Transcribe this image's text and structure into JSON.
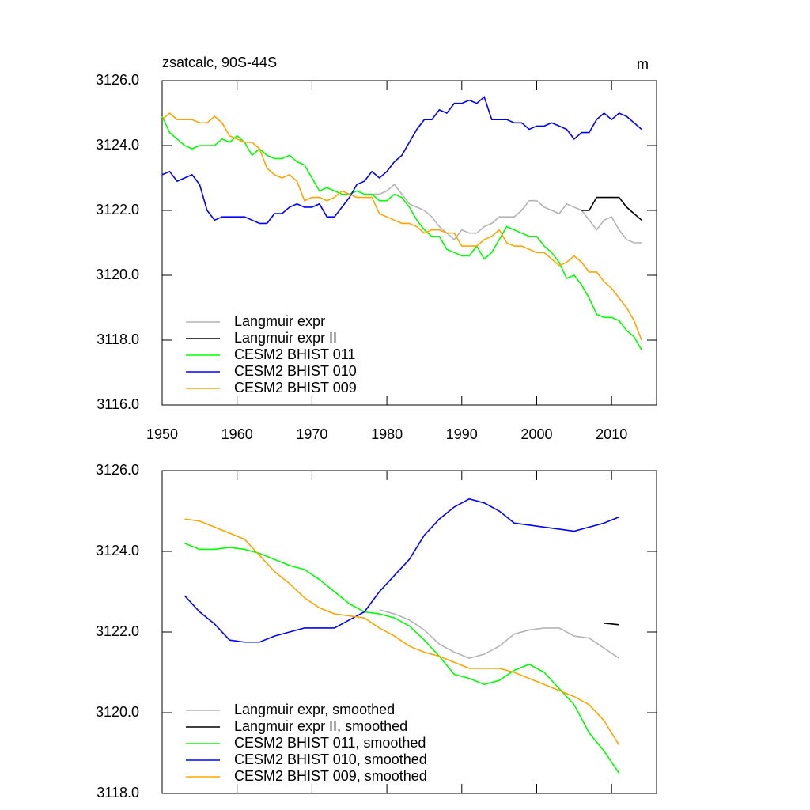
{
  "chart_data": [
    {
      "type": "line",
      "title": "zsatcalc, 90S-44S",
      "units": "m",
      "x": [
        1950,
        1951,
        1952,
        1953,
        1954,
        1955,
        1956,
        1957,
        1958,
        1959,
        1960,
        1961,
        1962,
        1963,
        1964,
        1965,
        1966,
        1967,
        1968,
        1969,
        1970,
        1971,
        1972,
        1973,
        1974,
        1975,
        1976,
        1977,
        1978,
        1979,
        1980,
        1981,
        1982,
        1983,
        1984,
        1985,
        1986,
        1987,
        1988,
        1989,
        1990,
        1991,
        1992,
        1993,
        1994,
        1995,
        1996,
        1997,
        1998,
        1999,
        2000,
        2001,
        2002,
        2003,
        2004,
        2005,
        2006,
        2007,
        2008,
        2009,
        2010,
        2011,
        2012,
        2013,
        2014
      ],
      "xlim": [
        1950,
        2016
      ],
      "xticks": [
        1950,
        1960,
        1970,
        1980,
        1990,
        2000,
        2010
      ],
      "ylim": [
        3116,
        3126
      ],
      "yticks": [
        {
          "value": 3116,
          "label": "3116.0"
        },
        {
          "value": 3118,
          "label": "3118.0"
        },
        {
          "value": 3120,
          "label": "3120.0"
        },
        {
          "value": 3122,
          "label": "3122.0"
        },
        {
          "value": 3124,
          "label": "3124.0"
        },
        {
          "value": 3126,
          "label": "3126.0"
        }
      ],
      "legend": "lower left",
      "series": [
        {
          "name": "Langmuir expr",
          "color": "#b4b4b4",
          "values": [
            null,
            null,
            null,
            null,
            null,
            null,
            null,
            null,
            null,
            null,
            null,
            null,
            null,
            null,
            null,
            null,
            null,
            null,
            null,
            null,
            null,
            null,
            null,
            null,
            null,
            null,
            null,
            null,
            3122.5,
            3122.5,
            3122.6,
            3122.8,
            3122.5,
            3122.2,
            3122.1,
            3122.0,
            3121.8,
            3121.5,
            3121.3,
            3121.1,
            3121.4,
            3121.3,
            3121.3,
            3121.5,
            3121.6,
            3121.8,
            3121.8,
            3121.8,
            3122.0,
            3122.3,
            3122.3,
            3122.1,
            3122.0,
            3121.9,
            3122.2,
            3122.1,
            3122.0,
            3121.7,
            3121.4,
            3121.7,
            3121.8,
            3121.4,
            3121.1,
            3121.0,
            3121.0
          ]
        },
        {
          "name": "Langmuir expr II",
          "color": "#000000",
          "values": [
            null,
            null,
            null,
            null,
            null,
            null,
            null,
            null,
            null,
            null,
            null,
            null,
            null,
            null,
            null,
            null,
            null,
            null,
            null,
            null,
            null,
            null,
            null,
            null,
            null,
            null,
            null,
            null,
            null,
            null,
            null,
            null,
            null,
            null,
            null,
            null,
            null,
            null,
            null,
            null,
            null,
            null,
            null,
            null,
            null,
            null,
            null,
            null,
            null,
            null,
            null,
            null,
            null,
            null,
            null,
            null,
            3122.0,
            3122.0,
            3122.4,
            3122.4,
            3122.4,
            3122.4,
            3122.1,
            3121.9,
            3121.7
          ]
        },
        {
          "name": "CESM2 BHIST 011",
          "color": "#00ff00",
          "values": [
            3124.9,
            3124.4,
            3124.2,
            3124.0,
            3123.9,
            3124.0,
            3124.0,
            3124.0,
            3124.2,
            3124.1,
            3124.3,
            3124.1,
            3123.7,
            3123.9,
            3123.7,
            3123.6,
            3123.6,
            3123.7,
            3123.5,
            3123.4,
            3123.0,
            3122.6,
            3122.7,
            3122.6,
            3122.5,
            3122.5,
            3122.6,
            3122.5,
            3122.5,
            3122.3,
            3122.3,
            3122.5,
            3122.4,
            3122.1,
            3121.7,
            3121.4,
            3121.2,
            3121.2,
            3120.8,
            3120.7,
            3120.6,
            3120.6,
            3120.9,
            3120.5,
            3120.7,
            3121.1,
            3121.5,
            3121.4,
            3121.3,
            3121.2,
            3121.2,
            3120.9,
            3120.7,
            3120.4,
            3119.9,
            3120.0,
            3119.7,
            3119.3,
            3118.8,
            3118.7,
            3118.7,
            3118.6,
            3118.3,
            3118.1,
            3117.7
          ]
        },
        {
          "name": "CESM2 BHIST 010",
          "color": "#0000ff",
          "values": [
            3123.1,
            3123.2,
            3122.9,
            3123.0,
            3123.1,
            3122.8,
            3122.0,
            3121.7,
            3121.8,
            3121.8,
            3121.8,
            3121.8,
            3121.7,
            3121.6,
            3121.6,
            3121.9,
            3121.9,
            3122.1,
            3122.2,
            3122.1,
            3122.1,
            3122.2,
            3121.8,
            3121.8,
            3122.1,
            3122.4,
            3122.8,
            3122.9,
            3123.2,
            3123.0,
            3123.2,
            3123.5,
            3123.7,
            3124.1,
            3124.5,
            3124.8,
            3124.8,
            3125.1,
            3125.0,
            3125.3,
            3125.3,
            3125.4,
            3125.3,
            3125.5,
            3124.8,
            3124.8,
            3124.8,
            3124.7,
            3124.7,
            3124.5,
            3124.6,
            3124.6,
            3124.7,
            3124.6,
            3124.5,
            3124.2,
            3124.4,
            3124.4,
            3124.8,
            3125.0,
            3124.8,
            3125.0,
            3124.9,
            3124.7,
            3124.5
          ]
        },
        {
          "name": "CESM2 BHIST 009",
          "color": "#ffa500",
          "values": [
            3124.8,
            3125.0,
            3124.8,
            3124.8,
            3124.8,
            3124.7,
            3124.7,
            3124.9,
            3124.7,
            3124.3,
            3124.2,
            3124.1,
            3124.1,
            3123.9,
            3123.3,
            3123.1,
            3123.0,
            3123.1,
            3122.9,
            3122.3,
            3122.4,
            3122.4,
            3122.3,
            3122.4,
            3122.6,
            3122.5,
            3122.4,
            3122.4,
            3122.4,
            3121.9,
            3121.8,
            3121.7,
            3121.6,
            3121.6,
            3121.5,
            3121.3,
            3121.4,
            3121.4,
            3121.3,
            3121.3,
            3120.9,
            3120.9,
            3120.9,
            3121.1,
            3121.2,
            3121.4,
            3121.0,
            3120.9,
            3120.9,
            3120.8,
            3120.7,
            3120.7,
            3120.5,
            3120.3,
            3120.4,
            3120.6,
            3120.4,
            3120.1,
            3120.1,
            3119.8,
            3119.6,
            3119.3,
            3119.0,
            3118.6,
            3118.0
          ]
        }
      ]
    },
    {
      "type": "line",
      "x": [
        1953,
        1955,
        1957,
        1959,
        1961,
        1963,
        1965,
        1967,
        1969,
        1971,
        1973,
        1975,
        1977,
        1979,
        1981,
        1983,
        1985,
        1987,
        1989,
        1991,
        1993,
        1995,
        1997,
        1999,
        2001,
        2003,
        2005,
        2007,
        2009,
        2011
      ],
      "xlim": [
        1950,
        2016
      ],
      "xticks": [
        1950,
        1960,
        1970,
        1980,
        1990,
        2000,
        2010
      ],
      "ylim": [
        3118,
        3126
      ],
      "yticks": [
        {
          "value": 3118,
          "label": "3118.0"
        },
        {
          "value": 3120,
          "label": "3120.0"
        },
        {
          "value": 3122,
          "label": "3122.0"
        },
        {
          "value": 3124,
          "label": "3124.0"
        },
        {
          "value": 3126,
          "label": "3126.0"
        }
      ],
      "legend": "lower left",
      "series": [
        {
          "name": "Langmuir expr, smoothed",
          "color": "#b4b4b4",
          "values": [
            null,
            null,
            null,
            null,
            null,
            null,
            null,
            null,
            null,
            null,
            null,
            null,
            null,
            3122.55,
            3122.45,
            3122.3,
            3122.05,
            3121.7,
            3121.5,
            3121.35,
            3121.45,
            3121.65,
            3121.95,
            3122.05,
            3122.1,
            3122.1,
            3121.9,
            3121.85,
            3121.6,
            3121.35
          ]
        },
        {
          "name": "Langmuir expr II, smoothed",
          "color": "#000000",
          "values": [
            null,
            null,
            null,
            null,
            null,
            null,
            null,
            null,
            null,
            null,
            null,
            null,
            null,
            null,
            null,
            null,
            null,
            null,
            null,
            null,
            null,
            null,
            null,
            null,
            null,
            null,
            null,
            null,
            3122.22,
            3122.18
          ]
        },
        {
          "name": "CESM2 BHIST 011, smoothed",
          "color": "#00ff00",
          "values": [
            3124.2,
            3124.05,
            3124.05,
            3124.1,
            3124.05,
            3123.95,
            3123.8,
            3123.65,
            3123.55,
            3123.3,
            3123.0,
            3122.7,
            3122.5,
            3122.45,
            3122.35,
            3122.15,
            3121.8,
            3121.4,
            3120.95,
            3120.85,
            3120.7,
            3120.8,
            3121.05,
            3121.2,
            3121.0,
            3120.6,
            3120.2,
            3119.5,
            3119.05,
            3118.5
          ]
        },
        {
          "name": "CESM2 BHIST 010, smoothed",
          "color": "#0000ff",
          "values": [
            3122.9,
            3122.5,
            3122.2,
            3121.8,
            3121.75,
            3121.75,
            3121.9,
            3122.0,
            3122.1,
            3122.1,
            3122.1,
            3122.3,
            3122.5,
            3123.0,
            3123.4,
            3123.8,
            3124.4,
            3124.8,
            3125.1,
            3125.3,
            3125.2,
            3125.0,
            3124.7,
            3124.65,
            3124.6,
            3124.55,
            3124.5,
            3124.6,
            3124.7,
            3124.85
          ]
        },
        {
          "name": "CESM2 BHIST 009, smoothed",
          "color": "#ffa500",
          "values": [
            3124.8,
            3124.75,
            3124.6,
            3124.45,
            3124.3,
            3123.9,
            3123.5,
            3123.2,
            3122.85,
            3122.6,
            3122.45,
            3122.4,
            3122.35,
            3122.1,
            3121.9,
            3121.65,
            3121.5,
            3121.4,
            3121.25,
            3121.1,
            3121.1,
            3121.1,
            3121.0,
            3120.85,
            3120.7,
            3120.55,
            3120.4,
            3120.2,
            3119.8,
            3119.2
          ]
        }
      ]
    }
  ]
}
